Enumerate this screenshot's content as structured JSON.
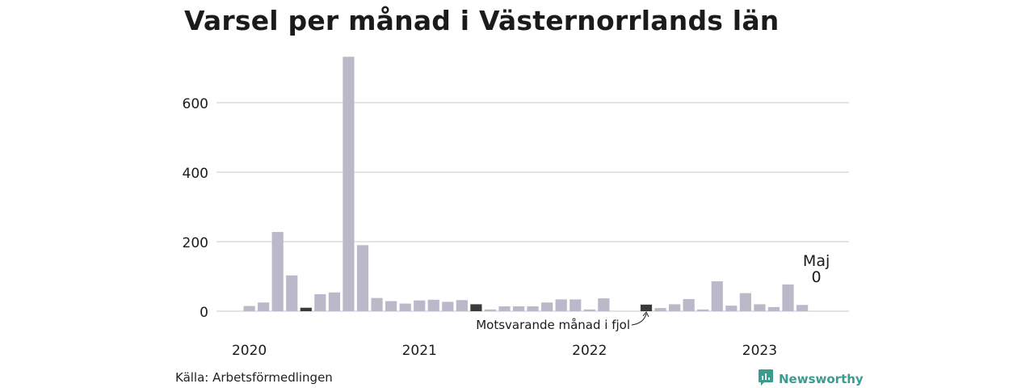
{
  "chart_data": {
    "type": "bar",
    "title": "Varsel per månad i Västernorrlands län",
    "ylim": [
      0,
      740
    ],
    "yticks": [
      0,
      200,
      400,
      600
    ],
    "year_labels": [
      {
        "label": "2020",
        "index": 0
      },
      {
        "label": "2021",
        "index": 12
      },
      {
        "label": "2022",
        "index": 24
      },
      {
        "label": "2023",
        "index": 36
      }
    ],
    "series": [
      {
        "values": [
          15,
          25,
          228,
          103,
          10,
          49,
          54,
          732,
          190,
          38,
          29,
          22,
          31,
          33,
          27,
          32,
          20,
          5,
          14,
          14,
          14,
          25,
          34,
          34,
          5,
          37,
          0,
          0,
          19,
          9,
          20,
          35,
          5,
          86,
          16,
          52,
          20,
          12,
          77,
          18,
          0
        ]
      }
    ],
    "highlight_indices": [
      4,
      16,
      28
    ],
    "last_label": {
      "month": "Maj",
      "value": "0"
    },
    "annotation": {
      "text": "Motsvarande månad i fjol"
    },
    "grid": true,
    "colors": {
      "bar": "#bbb9c9",
      "highlight": "#3a3a3a",
      "grid": "#dcdcdc",
      "text": "#1b1b1b"
    }
  },
  "source": "Källa: Arbetsförmedlingen",
  "brand": {
    "name": "Newsworthy",
    "icon": "newsworthy-logo-icon",
    "color": "#3a9c8e"
  }
}
